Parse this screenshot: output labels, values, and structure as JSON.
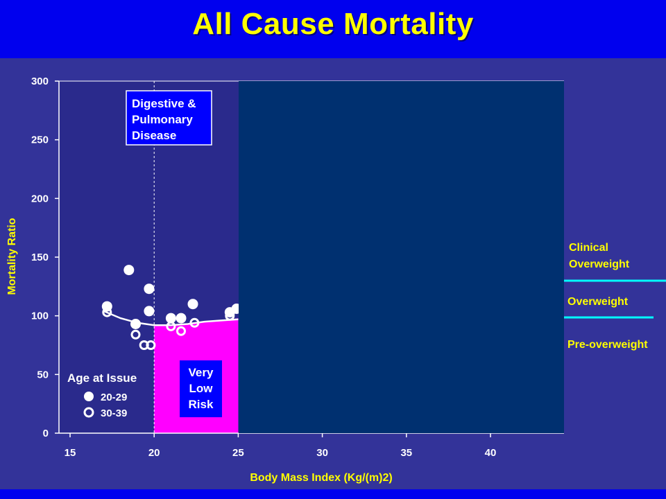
{
  "title": "All Cause Mortality",
  "colors": {
    "background": "#333399",
    "title_bar": "#0000ee",
    "title_text": "#ffff00",
    "plot_area": "#2a2a8c",
    "cover_panel": "#003070",
    "very_low_risk_fill": "#ff00ff",
    "annotation_box": "#0000ff",
    "zone_line": "#00ffff"
  },
  "chart_data": {
    "type": "scatter",
    "xlabel": "Body Mass Index (Kg/(m)2)",
    "ylabel": "Mortality Ratio",
    "xlim": [
      15,
      45
    ],
    "ylim": [
      0,
      300
    ],
    "x_ticks": [
      15,
      20,
      25,
      30,
      35,
      40
    ],
    "y_ticks": [
      0,
      50,
      100,
      150,
      200,
      250,
      300
    ],
    "grid": false,
    "legend": {
      "title": "Age at Issue",
      "placement": "bottom-left",
      "entries": [
        {
          "label": "20-29",
          "marker": "filled-circle"
        },
        {
          "label": "30-39",
          "marker": "open-circle"
        }
      ]
    },
    "series": [
      {
        "name": "20-29",
        "marker": "filled",
        "points": [
          [
            17.2,
            108
          ],
          [
            18.5,
            139
          ],
          [
            18.9,
            93
          ],
          [
            19.7,
            123
          ],
          [
            19.7,
            104
          ],
          [
            21.0,
            98
          ],
          [
            21.6,
            98
          ],
          [
            22.3,
            110
          ],
          [
            24.5,
            103
          ],
          [
            24.9,
            106
          ]
        ]
      },
      {
        "name": "30-39",
        "marker": "open",
        "points": [
          [
            17.2,
            103
          ],
          [
            18.9,
            84
          ],
          [
            19.4,
            75
          ],
          [
            19.8,
            75
          ],
          [
            21.0,
            91
          ],
          [
            21.6,
            87
          ],
          [
            22.4,
            94
          ],
          [
            24.5,
            100
          ]
        ]
      }
    ],
    "trend_line": [
      [
        17.0,
        104
      ],
      [
        18.0,
        98
      ],
      [
        19.0,
        94
      ],
      [
        20.0,
        92
      ],
      [
        21.0,
        92
      ],
      [
        22.0,
        93
      ],
      [
        23.0,
        95
      ],
      [
        24.0,
        96
      ],
      [
        25.0,
        97
      ]
    ],
    "very_low_risk_region": {
      "x": [
        20,
        25
      ],
      "top_curve": [
        [
          20,
          92
        ],
        [
          21,
          91
        ],
        [
          22,
          93
        ],
        [
          23,
          95
        ],
        [
          24,
          96
        ],
        [
          25,
          98
        ]
      ]
    },
    "reference_line_x": 20,
    "annotations": {
      "digestive_box": [
        "Digestive &",
        "Pulmonary",
        "Disease"
      ],
      "risk_box": [
        "Very",
        "Low",
        "Risk"
      ]
    },
    "zone_labels": [
      {
        "lines": [
          "Clinical",
          "Overweight"
        ]
      },
      {
        "lines": [
          "Overweight"
        ]
      },
      {
        "lines": [
          "Pre-overweight"
        ]
      }
    ]
  }
}
